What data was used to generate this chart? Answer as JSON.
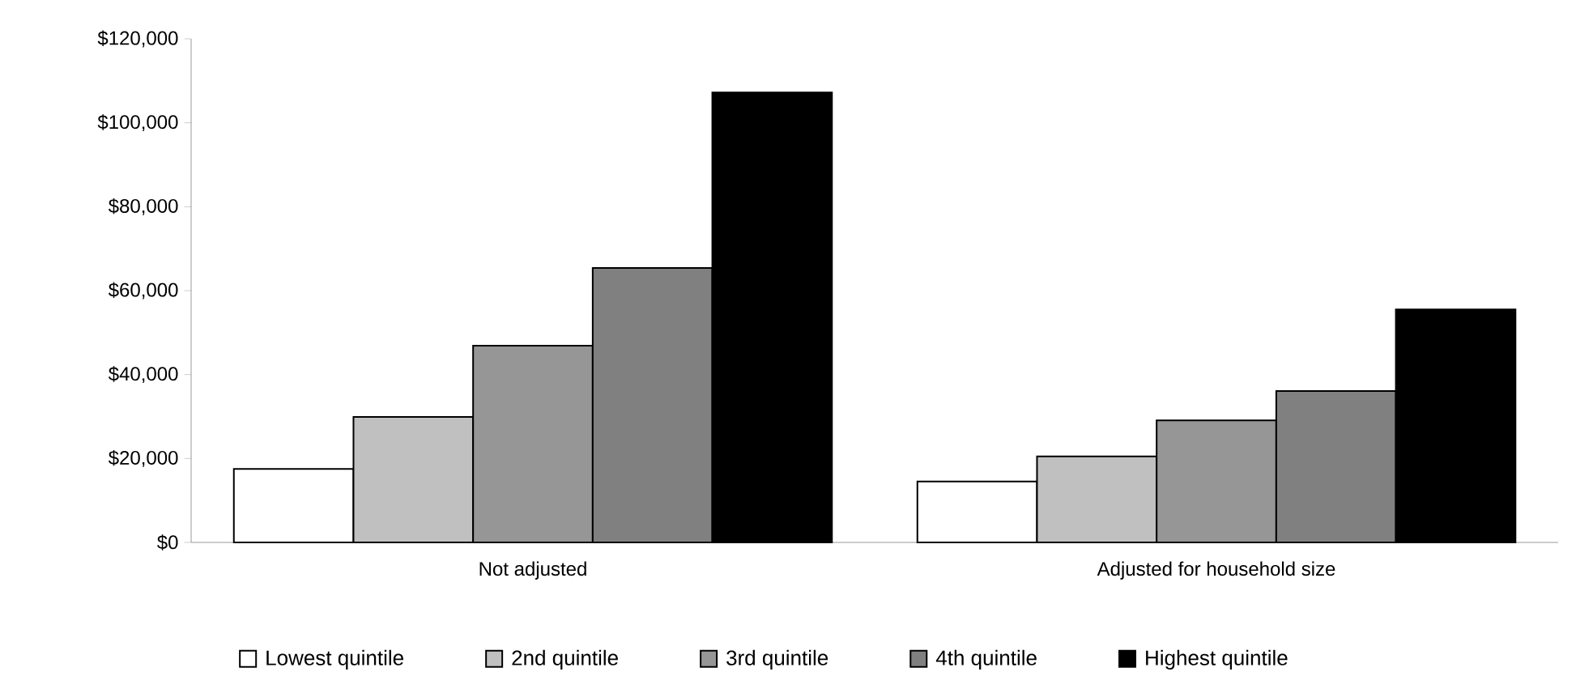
{
  "chart_data": {
    "type": "bar",
    "categories": [
      "Not adjusted",
      "Adjusted for household size"
    ],
    "series": [
      {
        "name": "Lowest quintile",
        "color": "#ffffff",
        "values": [
          17500,
          14500
        ]
      },
      {
        "name": "2nd quintile",
        "color": "#c0c0c0",
        "values": [
          29900,
          20500
        ]
      },
      {
        "name": "3rd quintile",
        "color": "#969696",
        "values": [
          46900,
          29100
        ]
      },
      {
        "name": "4th quintile",
        "color": "#808080",
        "values": [
          65400,
          36100
        ]
      },
      {
        "name": "Highest quintile",
        "color": "#000000",
        "values": [
          107200,
          55500
        ]
      }
    ],
    "ylim": [
      0,
      120000
    ],
    "yticks": [
      {
        "value": 0,
        "label": "$0"
      },
      {
        "value": 20000,
        "label": "$20,000"
      },
      {
        "value": 40000,
        "label": "$40,000"
      },
      {
        "value": 60000,
        "label": "$60,000"
      },
      {
        "value": 80000,
        "label": "$80,000"
      },
      {
        "value": 100000,
        "label": "$100,000"
      },
      {
        "value": 120000,
        "label": "$120,000"
      }
    ],
    "grid": false,
    "legend": "bottom"
  }
}
